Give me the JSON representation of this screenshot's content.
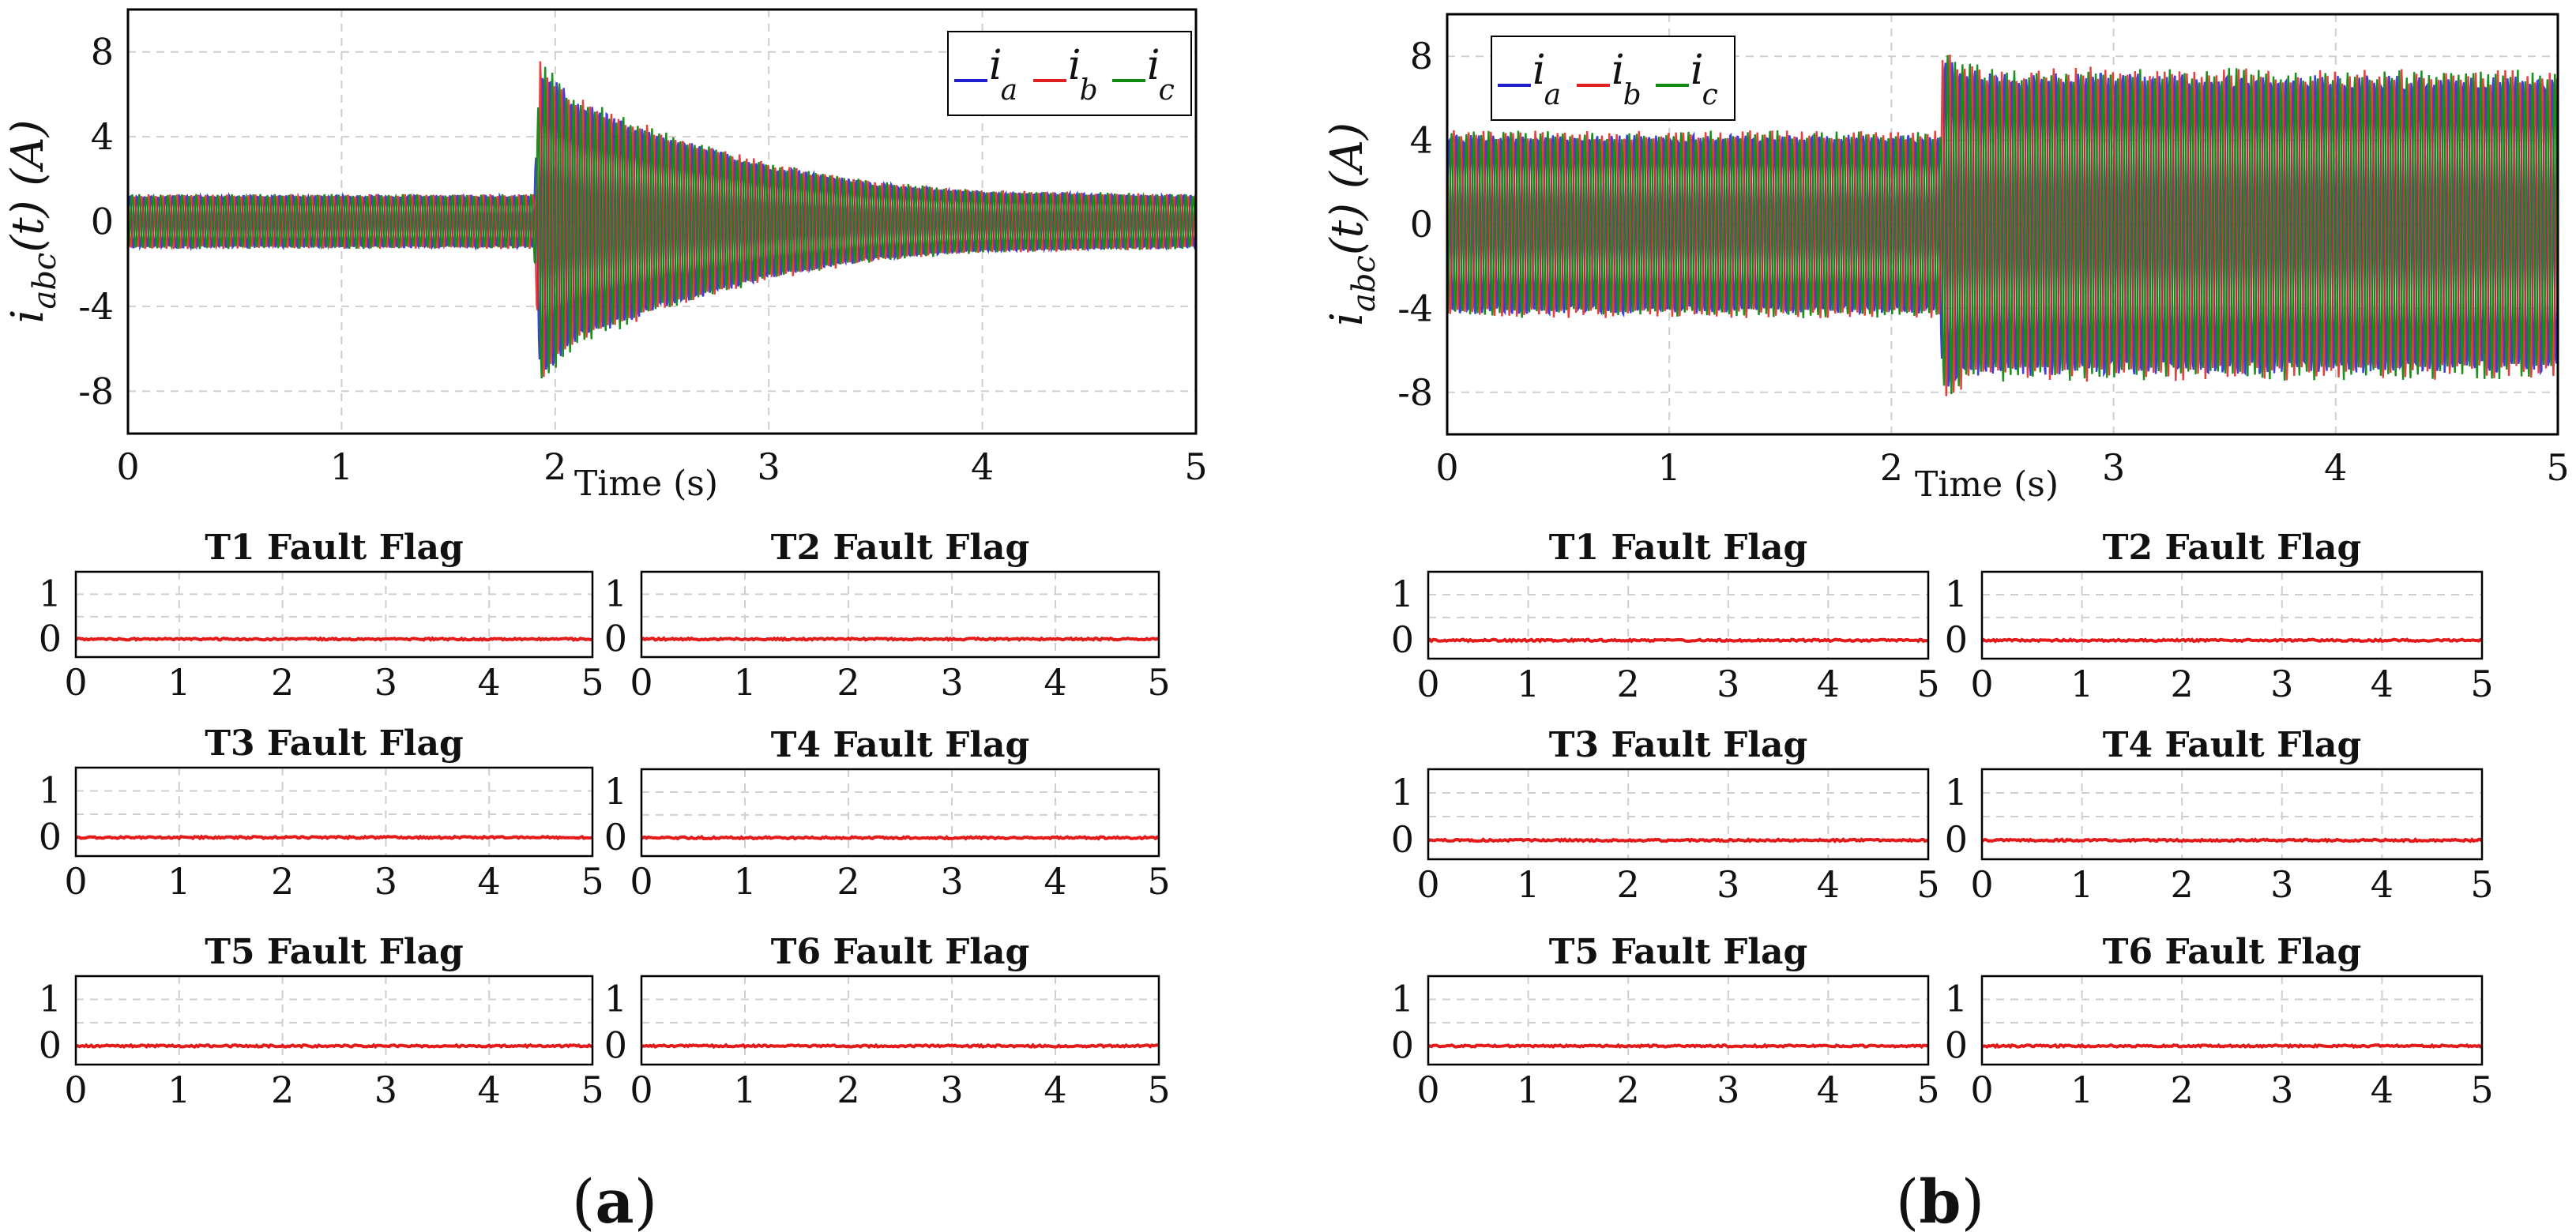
{
  "chart_data": [
    {
      "panel": "a",
      "panel_label": {
        "open": "(",
        "letter": "a",
        "close": ")"
      },
      "current": {
        "type": "line",
        "ylabel": {
          "base": "i",
          "sub": "abc",
          "tail": "(t) (A)"
        },
        "xlabel": "Time (s)",
        "xlim": [
          0,
          5
        ],
        "ylim": [
          -10,
          10
        ],
        "xticks": [
          "0",
          "1",
          "2",
          "3",
          "4",
          "5"
        ],
        "yticks": [
          "8",
          "4",
          "0",
          "-4",
          "-8"
        ],
        "ytick_values": [
          8,
          4,
          0,
          -4,
          -8
        ],
        "legend": {
          "position": "top-right",
          "base": "i",
          "subs": [
            "a",
            "b",
            "c"
          ]
        },
        "series": [
          {
            "name": "i_a",
            "color": "#1f1fd0"
          },
          {
            "name": "i_b",
            "color": "#e02020"
          },
          {
            "name": "i_c",
            "color": "#108a10"
          }
        ],
        "envelope": {
          "x": [
            0,
            1.9,
            1.93,
            2.1,
            2.5,
            3.0,
            3.5,
            4.0,
            5.0
          ],
          "y": [
            1.3,
            1.3,
            7.8,
            6.0,
            4.3,
            2.8,
            1.9,
            1.5,
            1.3
          ]
        }
      },
      "flags": [
        {
          "title": "T1 Fault Flag",
          "value": 0
        },
        {
          "title": "T2 Fault Flag",
          "value": 0
        },
        {
          "title": "T3 Fault Flag",
          "value": 0
        },
        {
          "title": "T4 Fault Flag",
          "value": 0
        },
        {
          "title": "T5 Fault Flag",
          "value": 0
        },
        {
          "title": "T6 Fault Flag",
          "value": 0
        }
      ],
      "flag_axes": {
        "xlim": [
          0,
          5
        ],
        "ylim": [
          -0.4,
          1.5
        ],
        "xticks": [
          "0",
          "1",
          "2",
          "3",
          "4",
          "5"
        ],
        "yticks": [
          "1",
          "0"
        ],
        "ytick_values": [
          1,
          0
        ],
        "color": "#e41b1b"
      }
    },
    {
      "panel": "b",
      "panel_label": {
        "open": "(",
        "letter": "b",
        "close": ")"
      },
      "current": {
        "type": "line",
        "ylabel": {
          "base": "i",
          "sub": "abc",
          "tail": "(t) (A)"
        },
        "xlabel": "Time (s)",
        "xlim": [
          0,
          5
        ],
        "ylim": [
          -10,
          10
        ],
        "xticks": [
          "0",
          "1",
          "2",
          "3",
          "4",
          "5"
        ],
        "yticks": [
          "8",
          "4",
          "0",
          "-4",
          "-8"
        ],
        "ytick_values": [
          8,
          4,
          0,
          -4,
          -8
        ],
        "legend": {
          "position": "top-left",
          "base": "i",
          "subs": [
            "a",
            "b",
            "c"
          ]
        },
        "series": [
          {
            "name": "i_a",
            "color": "#1f1fd0"
          },
          {
            "name": "i_b",
            "color": "#e02020"
          },
          {
            "name": "i_c",
            "color": "#108a10"
          }
        ],
        "envelope": {
          "x": [
            0,
            2.22,
            2.23,
            2.4,
            5.0
          ],
          "y": [
            4.5,
            4.5,
            8.3,
            7.6,
            7.4
          ]
        }
      },
      "flags": [
        {
          "title": "T1 Fault Flag",
          "value": 0
        },
        {
          "title": "T2 Fault Flag",
          "value": 0
        },
        {
          "title": "T3 Fault Flag",
          "value": 0
        },
        {
          "title": "T4 Fault Flag",
          "value": 0
        },
        {
          "title": "T5 Fault Flag",
          "value": 0
        },
        {
          "title": "T6 Fault Flag",
          "value": 0
        }
      ],
      "flag_axes": {
        "xlim": [
          0,
          5
        ],
        "ylim": [
          -0.4,
          1.5
        ],
        "xticks": [
          "0",
          "1",
          "2",
          "3",
          "4",
          "5"
        ],
        "yticks": [
          "1",
          "0"
        ],
        "ytick_values": [
          1,
          0
        ],
        "color": "#e41b1b"
      }
    }
  ]
}
